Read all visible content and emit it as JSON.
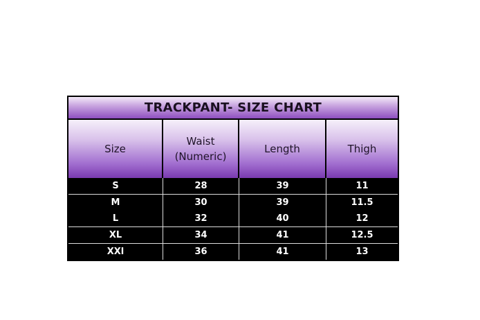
{
  "title": "TRACKPANT- SIZE CHART",
  "headers": [
    "Size",
    "Waist (Numeric)",
    "Length",
    "Thigh"
  ],
  "rows": [
    [
      "S",
      "28",
      "39",
      "11"
    ],
    [
      "M",
      "30",
      "39",
      "11.5"
    ],
    [
      "L",
      "32",
      "40",
      "12"
    ],
    [
      "XL",
      "34",
      "41",
      "12.5"
    ],
    [
      "XXl",
      "36",
      "41",
      "13"
    ]
  ],
  "colors": {
    "header_gradient_top": "#f3eaf8",
    "header_gradient_bottom": "#7a3ab0",
    "body_background": "#000000",
    "body_text": "#ffffff"
  }
}
